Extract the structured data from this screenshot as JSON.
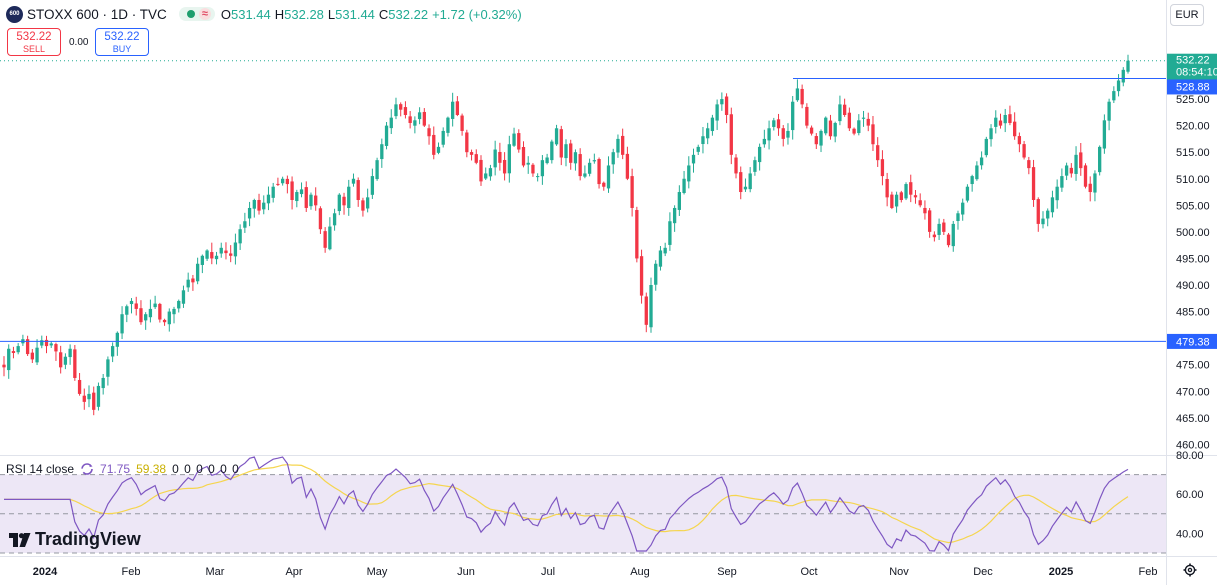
{
  "header": {
    "symbol_logo": "600",
    "title": "STOXX 600 · 1D · TVC",
    "status_wave": "≈",
    "ohlc": {
      "o_label": "O",
      "o": "531.44",
      "h_label": "H",
      "h": "532.28",
      "l_label": "L",
      "l": "531.44",
      "c_label": "C",
      "c": "532.22",
      "change": "+1.72 (+0.32%)"
    }
  },
  "trade": {
    "sell_price": "532.22",
    "sell_label": "SELL",
    "spread": "0.00",
    "buy_price": "532.22",
    "buy_label": "BUY"
  },
  "currency": "EUR",
  "price_scale": {
    "current": "532.22",
    "countdown": "08:54:10",
    "line1": "528.88",
    "line2": "479.38",
    "ticks": [
      "525.00",
      "520.00",
      "515.00",
      "510.00",
      "505.00",
      "500.00",
      "495.00",
      "490.00",
      "485.00",
      "480.00",
      "475.00",
      "470.00",
      "465.00",
      "460.00"
    ]
  },
  "time_axis": {
    "labels": [
      "2024",
      "Feb",
      "Mar",
      "Apr",
      "May",
      "Jun",
      "Jul",
      "Aug",
      "Sep",
      "Oct",
      "Nov",
      "Dec",
      "2025",
      "Feb"
    ]
  },
  "rsi": {
    "title": "RSI 14 close",
    "value": "71.75",
    "ma_value": "59.38",
    "zeros": "0 0 0 0 0 0",
    "ticks": [
      "80.00",
      "60.00",
      "40.00"
    ]
  },
  "branding": {
    "name": "TradingView"
  },
  "icons": {
    "settings": "gear-icon",
    "rsi_sync": "sync-icon",
    "logo": "tradingview-logo-icon",
    "status": "market-open-dot-icon"
  },
  "colors": {
    "up": "#22ab94",
    "down": "#f23645",
    "line": "#2962ff",
    "rsi": "#7e57c2",
    "rsi_ma": "#f5d54e",
    "rsi_band": "#ede7f6"
  },
  "chart_data": [
    {
      "type": "candlestick",
      "series_name": "STOXX 600",
      "x_labels": [
        "2024",
        "Feb",
        "Mar",
        "Apr",
        "May",
        "Jun",
        "Jul",
        "Aug",
        "Sep",
        "Oct",
        "Nov",
        "Dec",
        "2025",
        "Feb"
      ],
      "ylim": [
        458,
        538
      ],
      "yticks": [
        460,
        465,
        470,
        475,
        480,
        485,
        490,
        495,
        500,
        505,
        510,
        515,
        520,
        525
      ],
      "horizontal_lines": [
        528.88,
        479.38
      ],
      "last_close": 532.22,
      "closes": [
        474.5,
        478.0,
        477.2,
        478.5,
        479.8,
        477.0,
        476.0,
        478.2,
        479.6,
        478.5,
        479.0,
        477.5,
        474.5,
        476.5,
        478.0,
        472.5,
        469.5,
        468.0,
        469.5,
        466.5,
        471.0,
        472.5,
        476.0,
        478.5,
        481.0,
        484.5,
        486.0,
        487.0,
        485.5,
        483.0,
        484.5,
        485.5,
        486.5,
        483.5,
        483.0,
        485.0,
        485.5,
        487.0,
        489.0,
        491.0,
        490.5,
        494.0,
        495.5,
        496.5,
        495.0,
        495.5,
        497.0,
        496.0,
        495.5,
        498.0,
        500.5,
        502.0,
        504.5,
        506.0,
        504.0,
        505.5,
        507.0,
        508.5,
        509.0,
        510.0,
        509.0,
        506.0,
        507.5,
        508.0,
        504.5,
        507.0,
        505.0,
        500.5,
        497.0,
        501.0,
        503.5,
        507.0,
        505.0,
        508.5,
        510.0,
        506.0,
        504.0,
        506.5,
        510.5,
        513.5,
        516.5,
        520.0,
        521.5,
        524.0,
        523.0,
        522.0,
        520.5,
        521.0,
        522.5,
        520.0,
        518.0,
        514.5,
        516.0,
        519.0,
        521.5,
        524.5,
        522.0,
        519.0,
        515.0,
        514.5,
        513.0,
        509.5,
        511.0,
        512.0,
        515.5,
        513.0,
        511.0,
        516.5,
        518.5,
        515.5,
        512.5,
        513.0,
        511.0,
        510.5,
        513.5,
        514.0,
        517.0,
        519.5,
        514.0,
        516.5,
        513.0,
        515.0,
        510.5,
        511.0,
        513.0,
        513.5,
        509.0,
        508.5,
        512.5,
        515.0,
        517.5,
        514.5,
        510.0,
        504.5,
        495.0,
        488.0,
        482.5,
        490.0,
        494.0,
        496.5,
        497.0,
        502.0,
        504.5,
        507.5,
        510.0,
        512.5,
        514.5,
        516.0,
        518.0,
        519.5,
        521.5,
        524.0,
        525.0,
        522.0,
        514.5,
        511.0,
        507.5,
        508.5,
        511.0,
        513.5,
        516.0,
        517.5,
        519.5,
        521.0,
        519.5,
        517.5,
        519.0,
        524.5,
        527.0,
        524.0,
        520.0,
        518.5,
        516.5,
        519.0,
        521.5,
        518.0,
        520.5,
        524.0,
        522.0,
        519.5,
        518.5,
        521.0,
        521.5,
        520.0,
        516.5,
        513.5,
        510.5,
        506.5,
        504.5,
        507.0,
        506.0,
        509.0,
        507.0,
        506.5,
        505.0,
        503.5,
        500.0,
        499.0,
        501.5,
        500.0,
        497.5,
        501.5,
        503.5,
        505.5,
        508.5,
        510.5,
        512.5,
        514.0,
        517.5,
        519.5,
        521.5,
        520.0,
        522.0,
        520.5,
        518.0,
        516.5,
        514.0,
        512.0,
        506.0,
        501.5,
        502.5,
        504.0,
        506.5,
        508.5,
        510.5,
        512.5,
        511.0,
        514.5,
        512.0,
        508.5,
        507.5,
        511.0,
        516.0,
        521.0,
        524.5,
        526.5,
        528.5,
        530.5,
        532.22
      ],
      "rsi": {
        "name": "RSI 14 close",
        "ylim": [
          30,
          80
        ],
        "band": [
          30,
          70
        ],
        "midline": 50,
        "last": 71.75,
        "ma_last": 59.38
      }
    }
  ]
}
